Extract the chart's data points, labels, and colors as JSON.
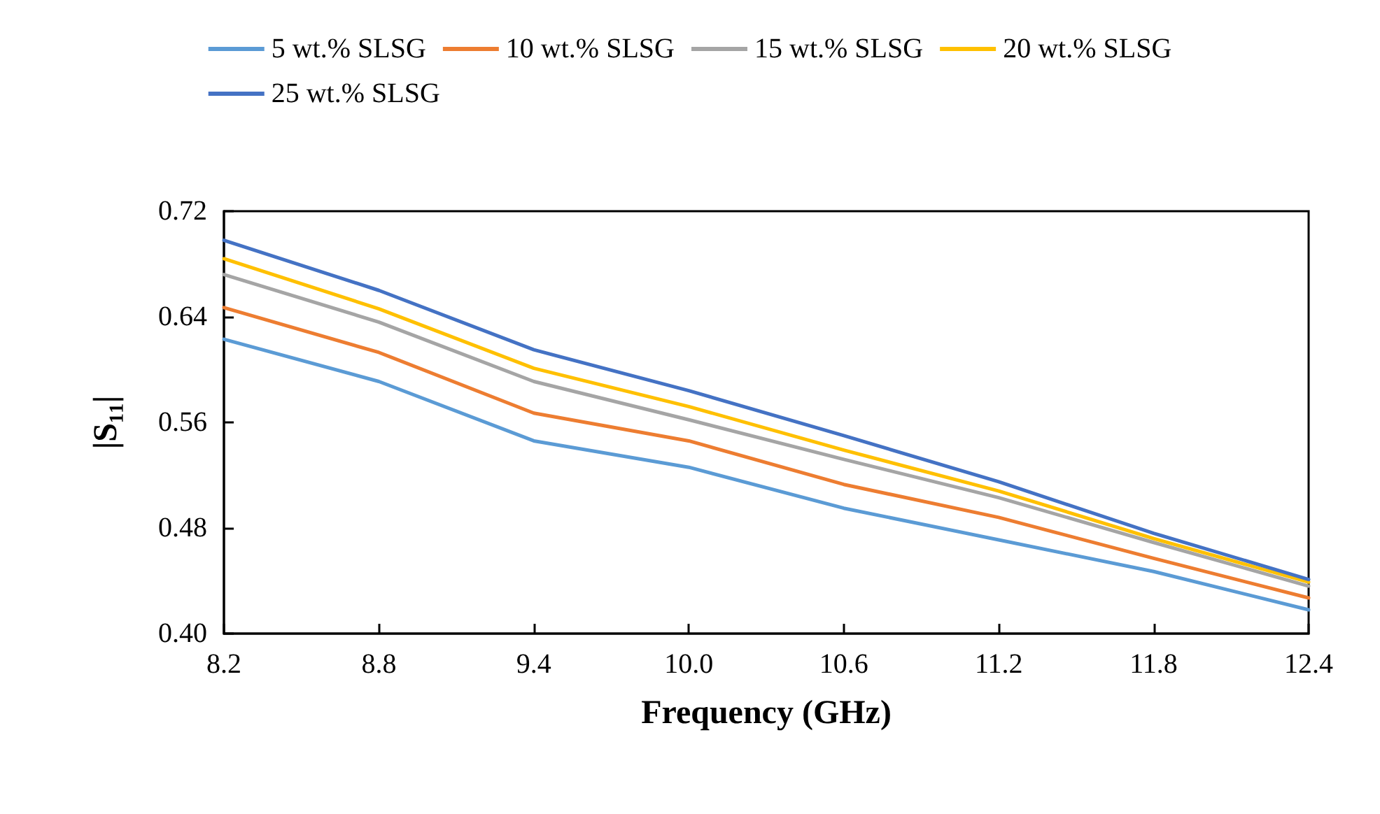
{
  "chart_data": {
    "type": "line",
    "xlabel": "Frequency (GHz)",
    "ylabel": "|S₁₁|",
    "x": [
      8.2,
      8.8,
      9.4,
      10.0,
      10.6,
      11.2,
      11.8,
      12.4
    ],
    "series": [
      {
        "name": "5 wt.% SLSG",
        "color": "#5b9bd5",
        "values": [
          0.623,
          0.591,
          0.546,
          0.526,
          0.495,
          0.471,
          0.447,
          0.418
        ]
      },
      {
        "name": "10 wt.% SLSG",
        "color": "#ed7d31",
        "values": [
          0.647,
          0.613,
          0.567,
          0.546,
          0.513,
          0.488,
          0.457,
          0.427
        ]
      },
      {
        "name": "15 wt.% SLSG",
        "color": "#a5a5a5",
        "values": [
          0.672,
          0.636,
          0.591,
          0.562,
          0.532,
          0.503,
          0.469,
          0.436
        ]
      },
      {
        "name": "20 wt.% SLSG",
        "color": "#ffc000",
        "values": [
          0.684,
          0.646,
          0.601,
          0.572,
          0.539,
          0.508,
          0.472,
          0.439
        ]
      },
      {
        "name": "25 wt.% SLSG",
        "color": "#4472c4",
        "values": [
          0.698,
          0.66,
          0.615,
          0.584,
          0.55,
          0.515,
          0.476,
          0.441
        ]
      }
    ],
    "xlim": [
      8.2,
      12.4
    ],
    "xticks": [
      {
        "value": 8.2,
        "label": "8.2"
      },
      {
        "value": 8.8,
        "label": "8.8"
      },
      {
        "value": 9.4,
        "label": "9.4"
      },
      {
        "value": 10.0,
        "label": "10.0"
      },
      {
        "value": 10.6,
        "label": "10.6"
      },
      {
        "value": 11.2,
        "label": "11.2"
      },
      {
        "value": 11.8,
        "label": "11.8"
      },
      {
        "value": 12.4,
        "label": "12.4"
      }
    ],
    "ylim": [
      0.4,
      0.72
    ],
    "yticks": [
      {
        "value": 0.4,
        "label": "0.40"
      },
      {
        "value": 0.48,
        "label": "0.48"
      },
      {
        "value": 0.56,
        "label": "0.56"
      },
      {
        "value": 0.64,
        "label": "0.64"
      },
      {
        "value": 0.72,
        "label": "0.72"
      }
    ],
    "grid": false,
    "legend": "top",
    "marker": "none",
    "line_style": "solid"
  }
}
